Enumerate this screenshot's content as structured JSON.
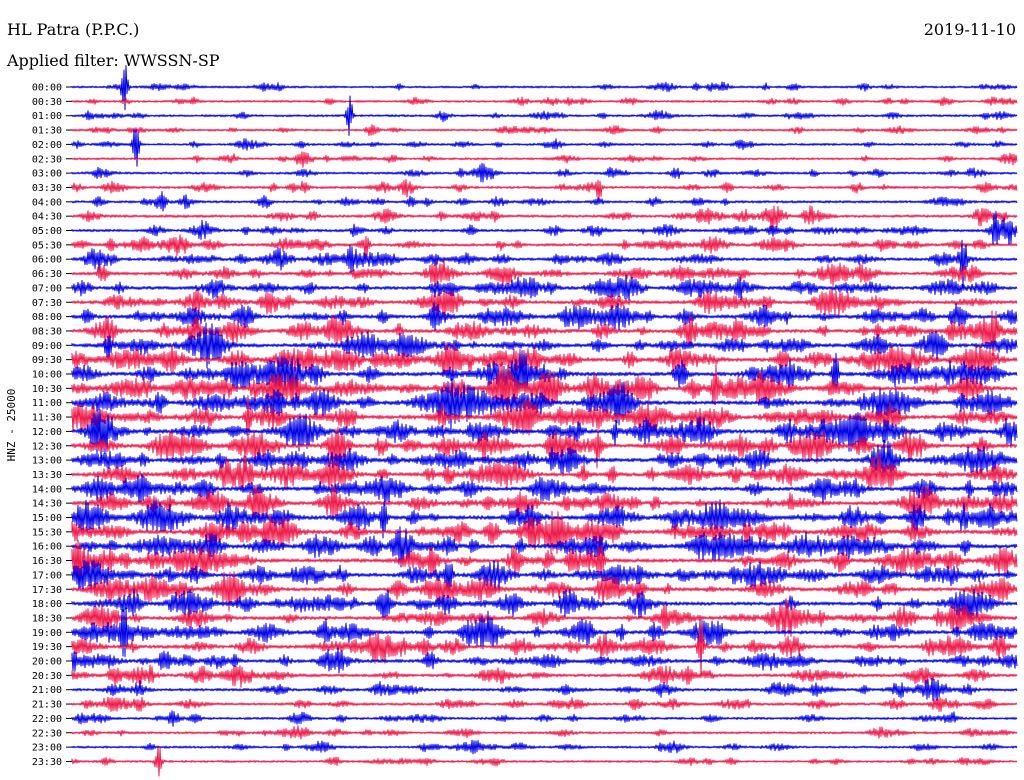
{
  "header": {
    "station": "HL Patra (P.P.C.)",
    "date": "2019-11-10",
    "filter_prefix": "Applied filter: ",
    "filter": "WWSSN-SP"
  },
  "chart_data": {
    "type": "line",
    "title": "",
    "ylabel": "HNZ - 25000",
    "xlabel": "",
    "grid": false,
    "legend": "none",
    "row_labels": [
      "00:00",
      "00:30",
      "01:00",
      "01:30",
      "02:00",
      "02:30",
      "03:00",
      "03:30",
      "04:00",
      "04:30",
      "05:00",
      "05:30",
      "06:00",
      "06:30",
      "07:00",
      "07:30",
      "08:00",
      "08:30",
      "09:00",
      "09:30",
      "10:00",
      "10:30",
      "11:00",
      "11:30",
      "12:00",
      "12:30",
      "13:00",
      "13:30",
      "14:00",
      "14:30",
      "15:00",
      "15:30",
      "16:00",
      "16:30",
      "17:00",
      "17:30",
      "18:00",
      "18:30",
      "19:00",
      "19:30",
      "20:00",
      "20:30",
      "21:00",
      "21:30",
      "22:00",
      "22:30",
      "23:00",
      "23:30"
    ],
    "row_colors": [
      "#0000e6",
      "#ee1a4a"
    ],
    "relative_activity": [
      0.16,
      0.15,
      0.17,
      0.17,
      0.16,
      0.16,
      0.2,
      0.26,
      0.28,
      0.33,
      0.32,
      0.38,
      0.42,
      0.46,
      0.5,
      0.52,
      0.6,
      0.62,
      0.64,
      0.66,
      0.7,
      0.72,
      0.72,
      0.72,
      0.7,
      0.68,
      0.68,
      0.66,
      0.64,
      0.66,
      0.7,
      0.72,
      0.7,
      0.68,
      0.64,
      0.64,
      0.62,
      0.6,
      0.6,
      0.56,
      0.52,
      0.44,
      0.36,
      0.3,
      0.22,
      0.2,
      0.18,
      0.16
    ]
  }
}
